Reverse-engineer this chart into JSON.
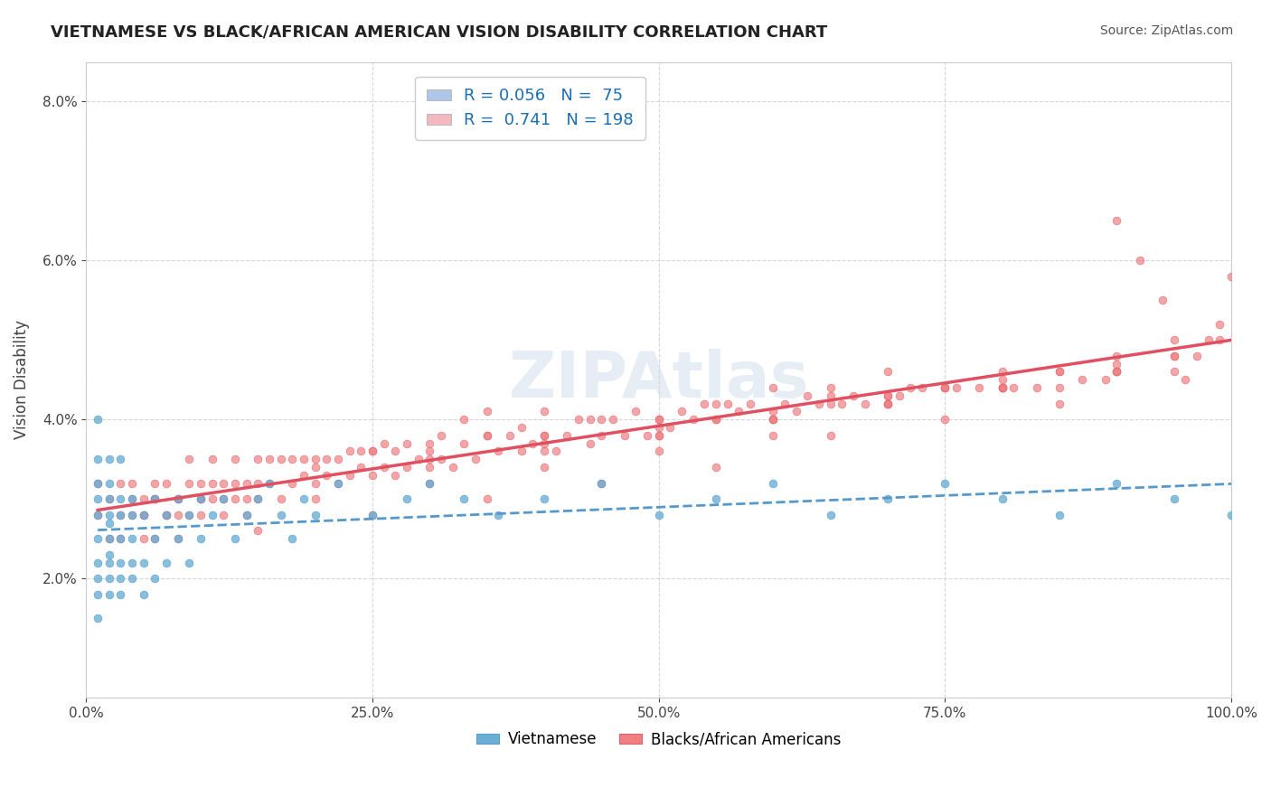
{
  "title": "VIETNAMESE VS BLACK/AFRICAN AMERICAN VISION DISABILITY CORRELATION CHART",
  "source_text": "Source: ZipAtlas.com",
  "xlabel": "",
  "ylabel": "Vision Disability",
  "watermark": "ZIPAtlas",
  "legend_entries": [
    {
      "label": "Vietnamese",
      "color": "#aec6e8",
      "R": "0.056",
      "N": "75"
    },
    {
      "label": "Blacks/African Americans",
      "color": "#f4b8c1",
      "R": "0.741",
      "N": "198"
    }
  ],
  "vietnamese_color": "#6aaed6",
  "vietnamese_edge": "#5a9ec6",
  "black_color": "#f08080",
  "black_edge": "#e06070",
  "trend_vietnamese_color": "#5599cc",
  "trend_black_color": "#e05060",
  "title_color": "#222222",
  "title_fontsize": 13,
  "axis_label_color": "#444444",
  "source_color": "#555555",
  "background_color": "#ffffff",
  "plot_bg_color": "#ffffff",
  "grid_color": "#cccccc",
  "xlim": [
    0.0,
    1.0
  ],
  "ylim": [
    0.005,
    0.085
  ],
  "yticks": [
    0.02,
    0.04,
    0.06,
    0.08
  ],
  "ytick_labels": [
    "2.0%",
    "4.0%",
    "6.0%",
    "8.0%"
  ],
  "xticks": [
    0.0,
    0.25,
    0.5,
    0.75,
    1.0
  ],
  "xtick_labels": [
    "0.0%",
    "25.0%",
    "50.0%",
    "75.0%",
    "100.0%"
  ],
  "viet_x": [
    0.01,
    0.01,
    0.01,
    0.01,
    0.01,
    0.01,
    0.01,
    0.01,
    0.01,
    0.01,
    0.02,
    0.02,
    0.02,
    0.02,
    0.02,
    0.02,
    0.02,
    0.02,
    0.02,
    0.02,
    0.03,
    0.03,
    0.03,
    0.03,
    0.03,
    0.03,
    0.03,
    0.04,
    0.04,
    0.04,
    0.04,
    0.04,
    0.05,
    0.05,
    0.05,
    0.06,
    0.06,
    0.06,
    0.07,
    0.07,
    0.08,
    0.08,
    0.09,
    0.09,
    0.1,
    0.1,
    0.11,
    0.12,
    0.13,
    0.14,
    0.15,
    0.16,
    0.17,
    0.18,
    0.19,
    0.2,
    0.22,
    0.25,
    0.28,
    0.3,
    0.33,
    0.36,
    0.4,
    0.45,
    0.5,
    0.55,
    0.6,
    0.65,
    0.7,
    0.75,
    0.8,
    0.85,
    0.9,
    0.95,
    1.0
  ],
  "viet_y": [
    0.025,
    0.028,
    0.022,
    0.03,
    0.018,
    0.032,
    0.02,
    0.035,
    0.015,
    0.04,
    0.028,
    0.022,
    0.03,
    0.025,
    0.035,
    0.02,
    0.018,
    0.032,
    0.027,
    0.023,
    0.03,
    0.025,
    0.022,
    0.028,
    0.02,
    0.035,
    0.018,
    0.028,
    0.022,
    0.03,
    0.025,
    0.02,
    0.028,
    0.022,
    0.018,
    0.03,
    0.025,
    0.02,
    0.028,
    0.022,
    0.03,
    0.025,
    0.028,
    0.022,
    0.03,
    0.025,
    0.028,
    0.03,
    0.025,
    0.028,
    0.03,
    0.032,
    0.028,
    0.025,
    0.03,
    0.028,
    0.032,
    0.028,
    0.03,
    0.032,
    0.03,
    0.028,
    0.03,
    0.032,
    0.028,
    0.03,
    0.032,
    0.028,
    0.03,
    0.032,
    0.03,
    0.028,
    0.032,
    0.03,
    0.028
  ],
  "black_x": [
    0.01,
    0.01,
    0.02,
    0.02,
    0.03,
    0.03,
    0.03,
    0.04,
    0.04,
    0.04,
    0.05,
    0.05,
    0.05,
    0.06,
    0.06,
    0.06,
    0.07,
    0.07,
    0.08,
    0.08,
    0.08,
    0.09,
    0.09,
    0.1,
    0.1,
    0.1,
    0.11,
    0.11,
    0.12,
    0.12,
    0.13,
    0.13,
    0.14,
    0.14,
    0.15,
    0.15,
    0.16,
    0.16,
    0.17,
    0.17,
    0.18,
    0.18,
    0.19,
    0.19,
    0.2,
    0.2,
    0.21,
    0.21,
    0.22,
    0.22,
    0.23,
    0.23,
    0.24,
    0.24,
    0.25,
    0.25,
    0.26,
    0.26,
    0.27,
    0.27,
    0.28,
    0.28,
    0.29,
    0.3,
    0.3,
    0.31,
    0.31,
    0.32,
    0.33,
    0.33,
    0.34,
    0.35,
    0.35,
    0.36,
    0.37,
    0.38,
    0.38,
    0.39,
    0.4,
    0.4,
    0.41,
    0.42,
    0.43,
    0.44,
    0.44,
    0.45,
    0.46,
    0.47,
    0.48,
    0.49,
    0.5,
    0.51,
    0.52,
    0.53,
    0.54,
    0.55,
    0.56,
    0.57,
    0.58,
    0.6,
    0.61,
    0.62,
    0.63,
    0.64,
    0.65,
    0.66,
    0.67,
    0.68,
    0.7,
    0.71,
    0.72,
    0.73,
    0.75,
    0.76,
    0.78,
    0.8,
    0.81,
    0.83,
    0.85,
    0.87,
    0.89,
    0.9,
    0.92,
    0.94,
    0.95,
    0.96,
    0.97,
    0.98,
    0.99,
    1.0,
    0.05,
    0.06,
    0.07,
    0.08,
    0.09,
    0.1,
    0.11,
    0.12,
    0.13,
    0.14,
    0.15,
    0.2,
    0.25,
    0.3,
    0.35,
    0.4,
    0.45,
    0.5,
    0.55,
    0.6,
    0.65,
    0.7,
    0.75,
    0.8,
    0.85,
    0.9,
    0.95,
    0.99,
    0.15,
    0.25,
    0.35,
    0.45,
    0.55,
    0.65,
    0.75,
    0.85,
    0.95,
    0.5,
    0.6,
    0.7,
    0.8,
    0.9,
    0.4,
    0.5,
    0.6,
    0.7,
    0.8,
    0.9,
    0.2,
    0.3,
    0.4,
    0.5,
    0.6,
    0.7,
    0.8,
    0.9,
    0.55,
    0.65,
    0.75,
    0.85,
    0.95,
    0.3,
    0.4,
    0.5,
    0.6,
    0.7,
    0.8,
    0.9
  ],
  "black_y": [
    0.028,
    0.032,
    0.025,
    0.03,
    0.028,
    0.032,
    0.025,
    0.03,
    0.028,
    0.032,
    0.025,
    0.03,
    0.028,
    0.032,
    0.025,
    0.03,
    0.028,
    0.032,
    0.025,
    0.03,
    0.028,
    0.032,
    0.035,
    0.03,
    0.028,
    0.032,
    0.03,
    0.035,
    0.028,
    0.032,
    0.03,
    0.035,
    0.028,
    0.032,
    0.03,
    0.035,
    0.032,
    0.035,
    0.03,
    0.035,
    0.032,
    0.035,
    0.033,
    0.035,
    0.032,
    0.035,
    0.033,
    0.035,
    0.032,
    0.035,
    0.033,
    0.036,
    0.034,
    0.036,
    0.033,
    0.036,
    0.034,
    0.037,
    0.033,
    0.036,
    0.034,
    0.037,
    0.035,
    0.034,
    0.037,
    0.035,
    0.038,
    0.034,
    0.037,
    0.04,
    0.035,
    0.038,
    0.041,
    0.036,
    0.038,
    0.036,
    0.039,
    0.037,
    0.038,
    0.041,
    0.036,
    0.038,
    0.04,
    0.037,
    0.04,
    0.038,
    0.04,
    0.038,
    0.041,
    0.038,
    0.04,
    0.039,
    0.041,
    0.04,
    0.042,
    0.04,
    0.042,
    0.041,
    0.042,
    0.04,
    0.042,
    0.041,
    0.043,
    0.042,
    0.043,
    0.042,
    0.043,
    0.042,
    0.043,
    0.043,
    0.044,
    0.044,
    0.044,
    0.044,
    0.044,
    0.044,
    0.044,
    0.044,
    0.044,
    0.045,
    0.045,
    0.065,
    0.06,
    0.055,
    0.05,
    0.045,
    0.048,
    0.05,
    0.052,
    0.058,
    0.028,
    0.03,
    0.028,
    0.03,
    0.028,
    0.03,
    0.032,
    0.03,
    0.032,
    0.03,
    0.032,
    0.034,
    0.036,
    0.036,
    0.038,
    0.038,
    0.04,
    0.04,
    0.042,
    0.044,
    0.044,
    0.046,
    0.044,
    0.046,
    0.046,
    0.048,
    0.048,
    0.05,
    0.026,
    0.028,
    0.03,
    0.032,
    0.034,
    0.038,
    0.04,
    0.042,
    0.046,
    0.038,
    0.04,
    0.042,
    0.044,
    0.046,
    0.034,
    0.036,
    0.038,
    0.042,
    0.044,
    0.046,
    0.03,
    0.032,
    0.036,
    0.038,
    0.04,
    0.042,
    0.044,
    0.046,
    0.04,
    0.042,
    0.044,
    0.046,
    0.048,
    0.035,
    0.037,
    0.039,
    0.041,
    0.043,
    0.045,
    0.047
  ]
}
